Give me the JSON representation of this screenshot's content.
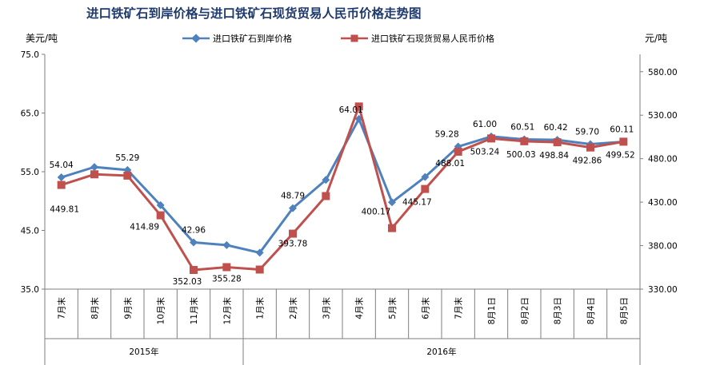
{
  "chart_data": {
    "type": "line",
    "title": "进口铁矿石到岸价格与进口铁矿石现货贸易人民币价格走势图",
    "ylabel_left": "美元/吨",
    "ylabel_right": "元/吨",
    "categories": [
      "7月末",
      "8月末",
      "9月末",
      "10月末",
      "11月末",
      "12月末",
      "1月末",
      "2月末",
      "3月末",
      "4月末",
      "5月末",
      "6月末",
      "7月末",
      "8月1日",
      "8月2日",
      "8月3日",
      "8月4日",
      "8月5日"
    ],
    "groups": [
      {
        "label": "2015年",
        "start": 0,
        "end": 5
      },
      {
        "label": "2016年",
        "start": 6,
        "end": 17
      }
    ],
    "left_axis": {
      "min": 35.0,
      "max": 75.0,
      "ticks": [
        "35.0",
        "45.0",
        "55.0",
        "65.0",
        "75.0"
      ]
    },
    "right_axis": {
      "min": 330.0,
      "max": 600.0,
      "ticks": [
        "330.00",
        "380.00",
        "430.00",
        "480.00",
        "530.00",
        "580.00"
      ]
    },
    "series": [
      {
        "name": "进口铁矿石到岸价格",
        "axis": "left",
        "color": "#4F81BD",
        "marker": "diamond",
        "values": [
          54.04,
          55.8,
          55.29,
          49.3,
          42.96,
          42.5,
          41.2,
          48.79,
          53.6,
          64.0,
          49.8,
          54.1,
          59.28,
          61.0,
          60.51,
          60.42,
          59.7,
          60.11
        ],
        "labels": [
          "54.04",
          null,
          "55.29",
          null,
          "42.96",
          null,
          null,
          "48.79",
          null,
          "64.01",
          null,
          null,
          "59.28",
          "61.00",
          "60.51",
          "60.42",
          "59.70",
          "60.11"
        ]
      },
      {
        "name": "进口铁矿石现货贸易人民币价格",
        "axis": "right",
        "color": "#C0504D",
        "marker": "square",
        "values": [
          449.81,
          462.0,
          460.5,
          414.89,
          352.03,
          355.28,
          352.5,
          393.78,
          437.0,
          540.0,
          400.17,
          445.17,
          488.01,
          503.24,
          500.03,
          498.84,
          492.86,
          499.52
        ],
        "labels": [
          "449.81",
          null,
          null,
          "414.89",
          "352.03",
          "355.28",
          null,
          "393.78",
          null,
          null,
          "400.17",
          "445.17",
          "488.01",
          "503.24",
          "500.03",
          "498.84",
          "492.86",
          "499.52"
        ]
      }
    ],
    "legend_position": "top-center",
    "grid": false
  }
}
